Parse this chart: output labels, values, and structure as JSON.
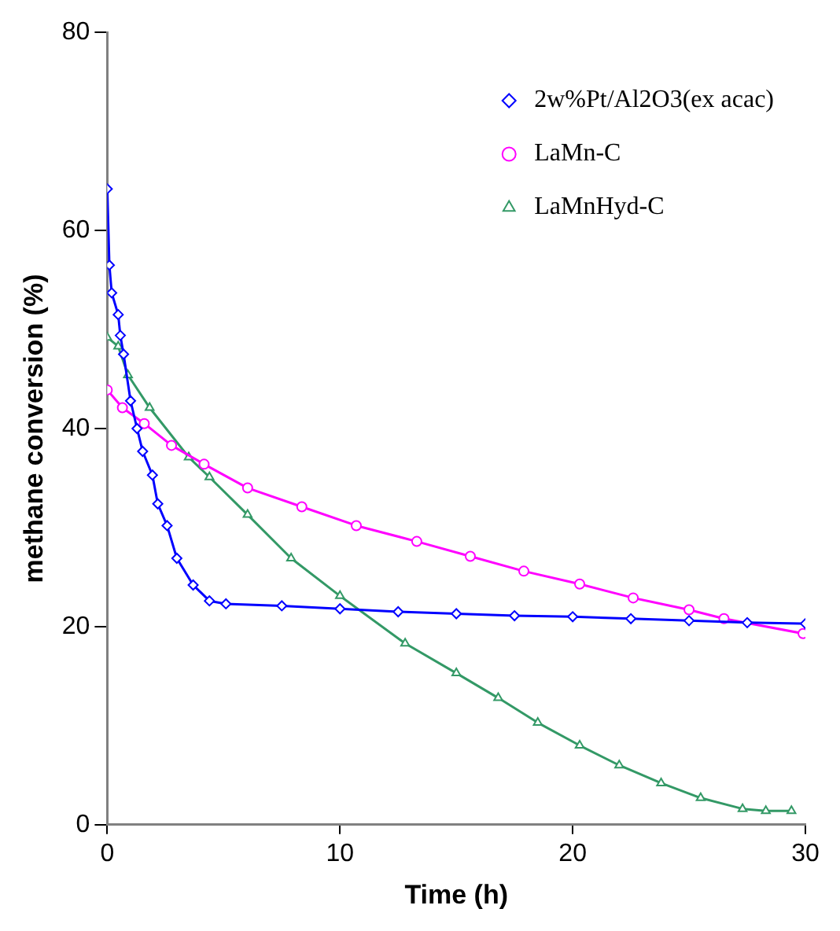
{
  "chart_data": {
    "type": "line",
    "xlabel": "Time (h)",
    "ylabel": "methane conversion (%)",
    "xlim": [
      0,
      30
    ],
    "xticks": [
      0,
      10,
      20,
      30
    ],
    "ylim": [
      0,
      80
    ],
    "yticks": [
      0,
      20,
      40,
      60,
      80
    ],
    "grid": false,
    "legend": "top right",
    "series": [
      {
        "name": "2w%Pt/Al2O3(ex acac)",
        "color": "#0000ff",
        "marker": "diamond",
        "x": [
          0,
          0.09,
          0.19,
          0.47,
          0.56,
          0.7,
          1.0,
          1.28,
          1.52,
          1.94,
          2.17,
          2.57,
          2.99,
          3.69,
          4.39,
          5.1,
          7.5,
          10,
          12.5,
          15,
          17.5,
          20,
          22.5,
          25,
          27.5,
          30
        ],
        "values": [
          64.2,
          56.5,
          53.7,
          51.5,
          49.4,
          47.5,
          42.8,
          40.0,
          37.7,
          35.3,
          32.4,
          30.2,
          26.9,
          24.2,
          22.6,
          22.3,
          22.1,
          21.8,
          21.5,
          21.3,
          21.1,
          21.0,
          20.8,
          20.6,
          20.4,
          20.3
        ]
      },
      {
        "name": "LaMn-C",
        "color": "#ff00ff",
        "marker": "circle",
        "x": [
          0,
          0.65,
          1.59,
          2.76,
          4.16,
          6.03,
          8.36,
          10.7,
          13.3,
          15.6,
          17.9,
          20.3,
          22.6,
          25,
          26.5,
          29.9
        ],
        "values": [
          43.9,
          42.1,
          40.5,
          38.3,
          36.4,
          34.0,
          32.1,
          30.2,
          28.6,
          27.1,
          25.6,
          24.3,
          22.9,
          21.7,
          20.8,
          19.3
        ]
      },
      {
        "name": "LaMnHyd-C",
        "color": "#339966",
        "marker": "triangle",
        "x": [
          0,
          0.47,
          0.89,
          1.82,
          3.5,
          4.39,
          6.03,
          7.9,
          10,
          12.8,
          15,
          16.8,
          18.5,
          20.3,
          22,
          23.8,
          25.5,
          27.3,
          28.3,
          29.4
        ],
        "values": [
          49.2,
          48.3,
          45.4,
          42.1,
          37.1,
          35.1,
          31.3,
          26.9,
          23.1,
          18.3,
          15.3,
          12.8,
          10.3,
          8.0,
          6.0,
          4.2,
          2.7,
          1.6,
          1.4,
          1.4
        ]
      }
    ]
  }
}
